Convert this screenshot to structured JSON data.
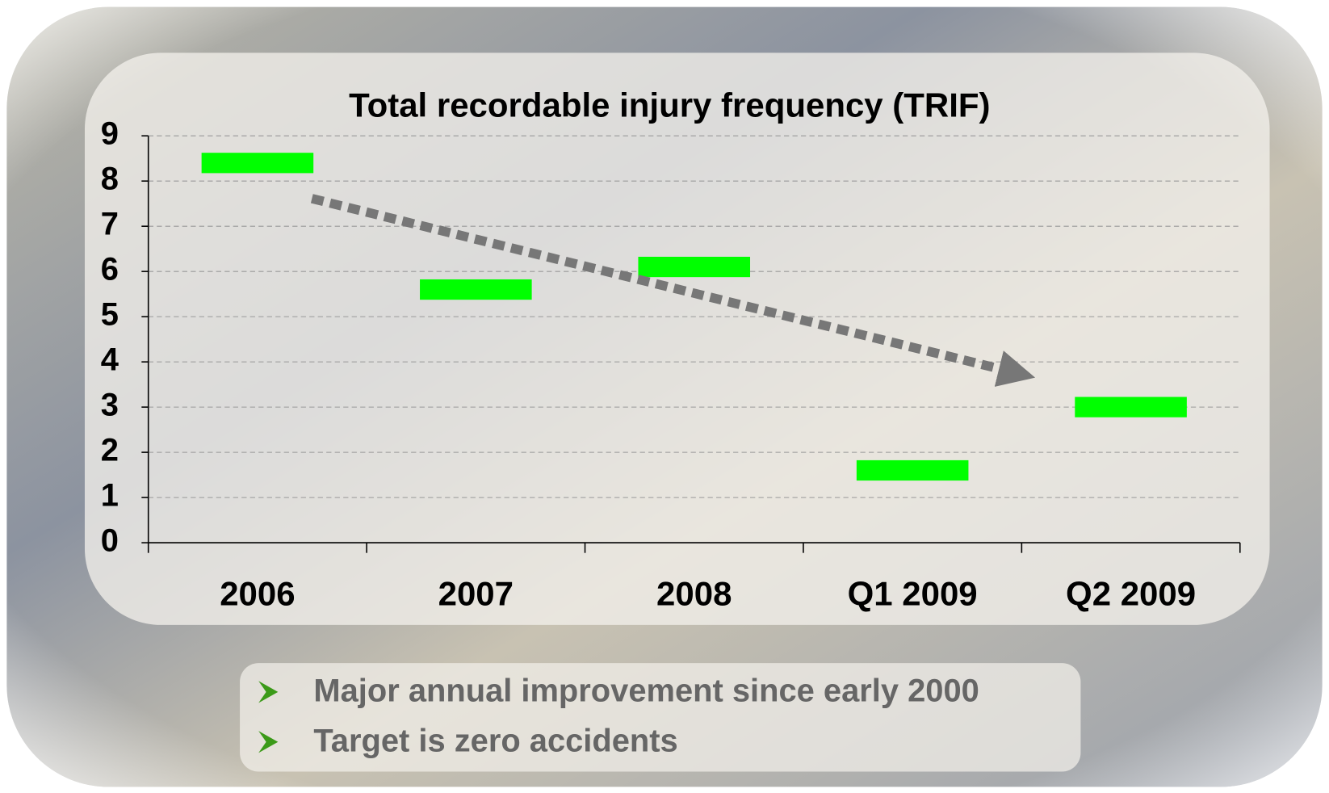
{
  "chart_data": {
    "type": "scatter",
    "title": "Total recordable injury frequency (TRIF)",
    "categories": [
      "2006",
      "2007",
      "2008",
      "Q1 2009",
      "Q2 2009"
    ],
    "values": [
      8.4,
      5.6,
      6.1,
      1.6,
      3.0
    ],
    "color": "#00ff00",
    "ylim": [
      0,
      9
    ],
    "yticks": [
      0,
      1,
      2,
      3,
      4,
      5,
      6,
      7,
      8,
      9
    ],
    "grid": true
  },
  "bullets": [
    "Major annual improvement since early 2000",
    "Target is zero accidents"
  ]
}
